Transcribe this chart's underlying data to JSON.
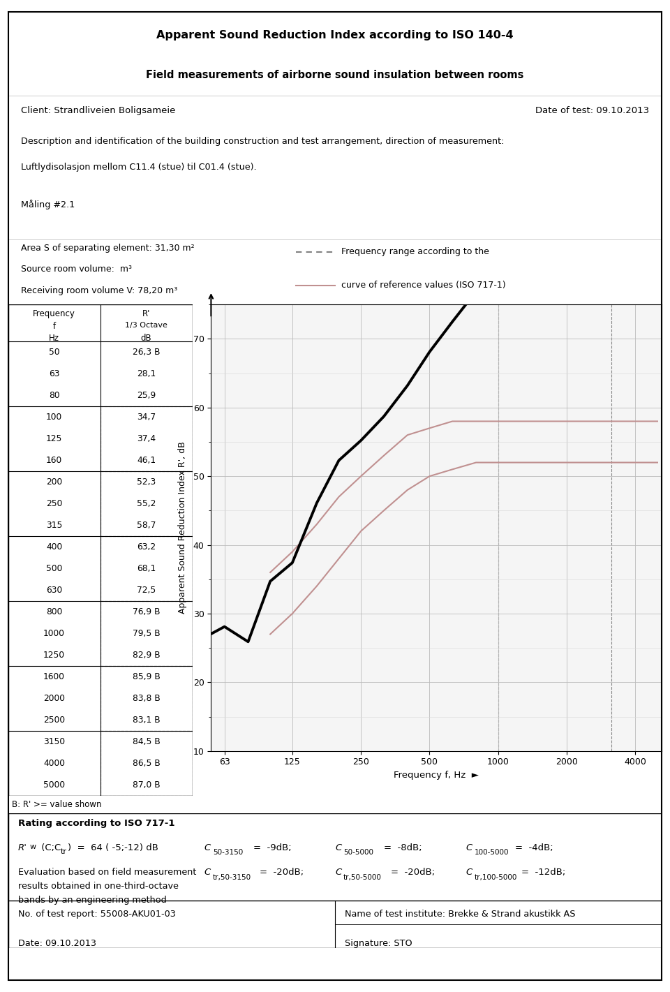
{
  "title_line1": "Apparent Sound Reduction Index according to ISO 140-4",
  "title_line2": "Field measurements of airborne sound insulation between rooms",
  "client": "Client: Strandliveien Boligsameie",
  "date_of_test": "Date of test: 09.10.2013",
  "description_line1": "Description and identification of the building construction and test arrangement, direction of measurement:",
  "description_line2": "Luftlydisolasjon mellom C11.4 (stue) til C01.4 (stue).",
  "maling": "Måling #2.1",
  "area_text": "Area S of separating element: 31,30 m²",
  "source_vol_text": "Source room volume:  m³",
  "recv_vol_text": "Receiving room volume V: 78,20 m³",
  "legend_dashed": "Frequency range according to the",
  "legend_solid": "curve of reference values (ISO 717-1)",
  "table_freq": [
    50,
    63,
    80,
    100,
    125,
    160,
    200,
    250,
    315,
    400,
    500,
    630,
    800,
    1000,
    1250,
    1600,
    2000,
    2500,
    3150,
    4000,
    5000
  ],
  "table_rw": [
    26.3,
    28.1,
    25.9,
    34.7,
    37.4,
    46.1,
    52.3,
    55.2,
    58.7,
    63.2,
    68.1,
    72.5,
    76.9,
    79.5,
    82.9,
    85.9,
    83.8,
    83.1,
    84.5,
    86.5,
    87.0
  ],
  "table_flags": [
    "B",
    "",
    "",
    "",
    "",
    "",
    "",
    "",
    "",
    "",
    "",
    "",
    "B",
    "B",
    "B",
    "B",
    "B",
    "B",
    "B",
    "B",
    "B"
  ],
  "ylabel": "Apparent Sound Reduction Index R', dB",
  "xlabel": "Frequency f, Hz",
  "meas_freq": [
    50,
    63,
    80,
    100,
    125,
    160,
    200,
    250,
    315,
    400,
    500,
    630,
    800,
    1000,
    1250,
    1600,
    2000,
    2500,
    3150,
    4000,
    5000
  ],
  "meas_rw": [
    26.3,
    28.1,
    25.9,
    34.7,
    37.4,
    46.1,
    52.3,
    55.2,
    58.7,
    63.2,
    68.1,
    72.5,
    76.9,
    79.5,
    82.9,
    85.9,
    83.8,
    83.1,
    84.5,
    86.5,
    87.0
  ],
  "ref_upper_freq": [
    100,
    125,
    160,
    200,
    250,
    315,
    400,
    500,
    630,
    800,
    1000,
    1250,
    1600,
    2000,
    2500,
    3150,
    4000,
    5000
  ],
  "ref_upper_rw": [
    36.0,
    39.0,
    43.0,
    47.0,
    50.0,
    53.0,
    56.0,
    57.0,
    58.0,
    58.0,
    58.0,
    58.0,
    58.0,
    58.0,
    58.0,
    58.0,
    58.0,
    58.0
  ],
  "ref_lower_freq": [
    100,
    125,
    160,
    200,
    250,
    315,
    400,
    500,
    630,
    800,
    1000,
    1250,
    1600,
    2000,
    2500,
    3150,
    4000,
    5000
  ],
  "ref_lower_rw": [
    27.0,
    30.0,
    34.0,
    38.0,
    42.0,
    45.0,
    48.0,
    50.0,
    51.0,
    52.0,
    52.0,
    52.0,
    52.0,
    52.0,
    52.0,
    52.0,
    52.0,
    52.0
  ],
  "ref_color": "#c09090",
  "meas_color": "#000000",
  "rating_text1": "Rating according to ISO 717-1",
  "eval_text": "Evaluation based on field measurement",
  "eval_text2": "results obtained in one-third-octave",
  "eval_text3": "bands by an engineering method",
  "report_no": "No. of test report: 55008-AKU01-03",
  "institute": "Name of test institute: Brekke & Strand akustikk AS",
  "date2": "Date: 09.10.2013",
  "signature": "Signature: STO",
  "b_note": "B: R' >= value shown",
  "background": "#ffffff"
}
